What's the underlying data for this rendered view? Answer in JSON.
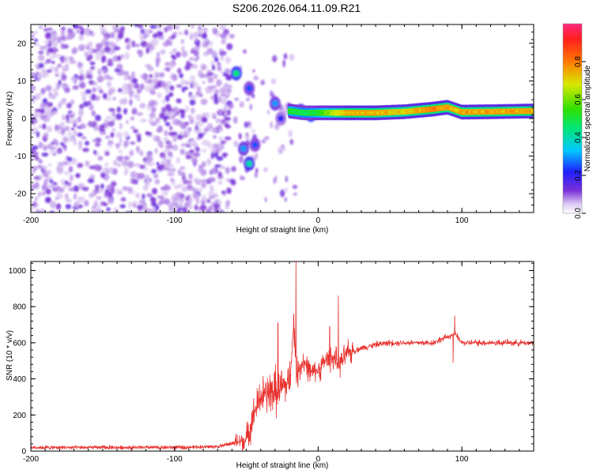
{
  "title": "S206.2026.064.11.09.R21",
  "chart_data": [
    {
      "type": "heatmap",
      "name": "spectrogram",
      "xlabel": "Height of straight line (km)",
      "ylabel": "Frequency (Hz)",
      "xlim": [
        -200,
        150
      ],
      "ylim": [
        -25,
        25
      ],
      "xticks": [
        -200,
        -100,
        0,
        100
      ],
      "yticks": [
        -20,
        -10,
        0,
        10,
        20
      ],
      "colorbar": {
        "label": "Normalized spectral amplitude",
        "range": [
          0,
          1
        ],
        "ticks": [
          0.0,
          0.2,
          0.4,
          0.6,
          0.8
        ]
      },
      "noise_region_x": [
        -200,
        -60
      ],
      "signal_line": {
        "description_values": [
          {
            "x": -20,
            "f": 2.0,
            "amp": 0.55
          },
          {
            "x": -10,
            "f": 1.5,
            "amp": 0.5
          },
          {
            "x": 0,
            "f": 1.5,
            "amp": 0.55
          },
          {
            "x": 20,
            "f": 1.5,
            "amp": 0.8
          },
          {
            "x": 40,
            "f": 1.5,
            "amp": 0.8
          },
          {
            "x": 60,
            "f": 1.8,
            "amp": 0.75
          },
          {
            "x": 80,
            "f": 2.5,
            "amp": 0.85
          },
          {
            "x": 90,
            "f": 3.0,
            "amp": 0.8
          },
          {
            "x": 100,
            "f": 1.7,
            "amp": 0.8
          },
          {
            "x": 120,
            "f": 1.8,
            "amp": 0.8
          },
          {
            "x": 150,
            "f": 2.0,
            "amp": 0.8
          }
        ]
      },
      "features": [
        {
          "x": -57,
          "f": 12.0,
          "amp": 0.45
        },
        {
          "x": -48,
          "f": 8.0,
          "amp": 0.25
        },
        {
          "x": -52,
          "f": -8.0,
          "amp": 0.3
        },
        {
          "x": -48,
          "f": -12.0,
          "amp": 0.4
        },
        {
          "x": -44,
          "f": -7.0,
          "amp": 0.25
        },
        {
          "x": -30,
          "f": 4.0,
          "amp": 0.3
        },
        {
          "x": -26,
          "f": 0.0,
          "amp": 0.2
        },
        {
          "x": -12,
          "f": 2.0,
          "amp": 0.45
        },
        {
          "x": -5,
          "f": 1.0,
          "amp": 0.5
        }
      ]
    },
    {
      "type": "line",
      "name": "snr",
      "xlabel": "Height of straight line (km)",
      "ylabel": "SNR (10 * v/v)",
      "xlim": [
        -200,
        150
      ],
      "ylim": [
        0,
        1050
      ],
      "xticks": [
        -200,
        -100,
        0,
        100
      ],
      "yticks": [
        0,
        200,
        400,
        600,
        800,
        1000
      ],
      "color": "#e8312e",
      "series": [
        {
          "name": "SNR",
          "x": [
            -200,
            -150,
            -100,
            -70,
            -50,
            -45,
            -40,
            -35,
            -30,
            -25,
            -20,
            -17,
            -15,
            -12,
            -10,
            -5,
            0,
            5,
            10,
            15,
            20,
            30,
            40,
            50,
            60,
            80,
            95,
            100,
            120,
            150
          ],
          "y": [
            20,
            20,
            20,
            25,
            60,
            200,
            300,
            320,
            330,
            350,
            380,
            700,
            420,
            480,
            500,
            430,
            450,
            500,
            520,
            480,
            540,
            570,
            590,
            600,
            600,
            600,
            650,
            600,
            600,
            600
          ]
        }
      ],
      "peaks": [
        {
          "x": -15.5,
          "y": 1050
        },
        {
          "x": 14,
          "y": 860
        },
        {
          "x": -28,
          "y": 710
        },
        {
          "x": 8,
          "y": 690
        },
        {
          "x": 95,
          "y": 750
        },
        {
          "x": 94,
          "y": 490
        }
      ]
    }
  ]
}
